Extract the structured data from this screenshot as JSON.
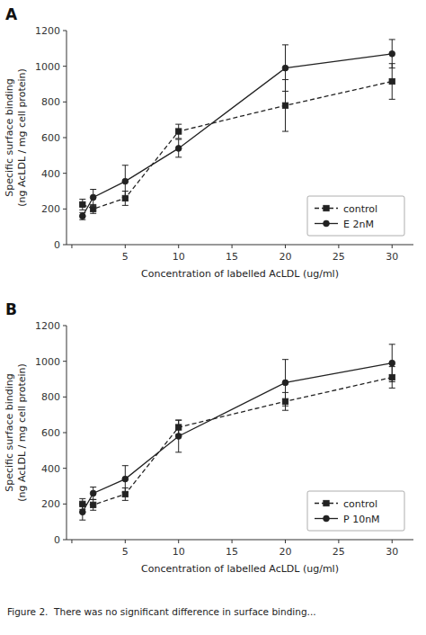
{
  "chart_data": [
    {
      "type": "line",
      "title": "A",
      "x": [
        1,
        2,
        5,
        10,
        20,
        30
      ],
      "series": [
        {
          "name": "control",
          "color": "#222222",
          "marker": "square",
          "line_style": "dashed",
          "values": [
            225,
            200,
            260,
            635,
            780,
            915
          ],
          "errors": [
            30,
            25,
            40,
            40,
            145,
            100
          ]
        },
        {
          "name": "E 2nM",
          "color": "#222222",
          "marker": "circle",
          "line_style": "solid",
          "values": [
            160,
            265,
            355,
            540,
            990,
            1070
          ],
          "errors": [
            20,
            45,
            90,
            50,
            130,
            80
          ]
        }
      ],
      "xlabel": "Concentration of labelled AcLDL (ug/ml)",
      "ylabel": "Specific surface binding\n(ng AcLDL / mg cell protein)",
      "xlim": [
        -0.5,
        32
      ],
      "ylim": [
        0,
        1200
      ],
      "xticks": [
        {
          "value": 0,
          "label": null
        },
        5,
        10,
        15,
        20,
        25,
        30
      ],
      "yticks": [
        0,
        200,
        400,
        600,
        800,
        1000,
        1200
      ],
      "grid": false,
      "legend": "lower right"
    },
    {
      "type": "line",
      "title": "B",
      "x": [
        1,
        2,
        5,
        10,
        20,
        30
      ],
      "series": [
        {
          "name": "control",
          "color": "#222222",
          "marker": "square",
          "line_style": "dashed",
          "values": [
            200,
            195,
            255,
            630,
            775,
            910
          ],
          "errors": [
            30,
            30,
            35,
            40,
            50,
            60
          ]
        },
        {
          "name": "P 10nM",
          "color": "#222222",
          "marker": "circle",
          "line_style": "solid",
          "values": [
            155,
            260,
            340,
            580,
            880,
            990
          ],
          "errors": [
            45,
            35,
            75,
            90,
            130,
            105
          ]
        }
      ],
      "xlabel": "Concentration of labelled AcLDL (ug/ml)",
      "ylabel": "Specific surface binding\n(ng AcLDL / mg cell protein)",
      "xlim": [
        -0.5,
        32
      ],
      "ylim": [
        0,
        1200
      ],
      "xticks": [
        {
          "value": 0,
          "label": null
        },
        5,
        10,
        15,
        20,
        25,
        30
      ],
      "yticks": [
        0,
        200,
        400,
        600,
        800,
        1000,
        1200
      ],
      "grid": false,
      "legend": "lower right",
      "annotations": [
        "Figure 2.  There was no significant difference in surface binding..."
      ]
    }
  ]
}
